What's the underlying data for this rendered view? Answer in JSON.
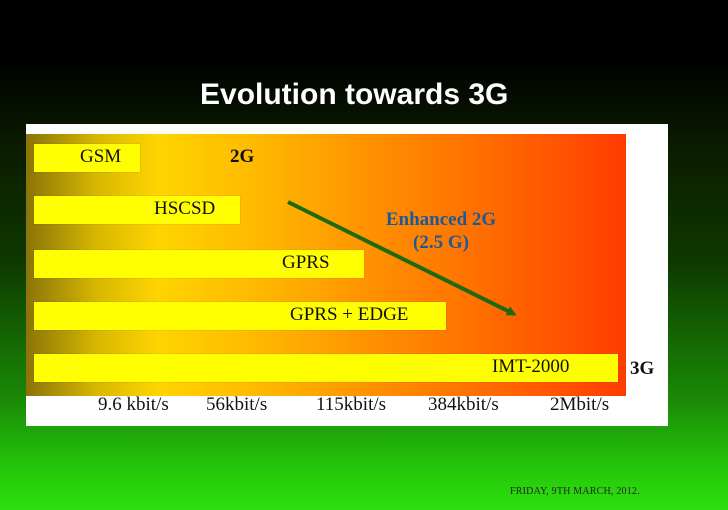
{
  "title": "Evolution towards 3G",
  "bars": [
    {
      "label": "GSM"
    },
    {
      "label": "HSCSD"
    },
    {
      "label": "GPRS"
    },
    {
      "label": "GPRS + EDGE"
    },
    {
      "label": "IMT-2000"
    }
  ],
  "generation_labels": {
    "g2": "2G",
    "enhanced_line1": "Enhanced 2G",
    "enhanced_line2": "(2.5 G)",
    "g3": "3G"
  },
  "data_rates": [
    "9.6 kbit/s",
    "56kbit/s",
    "115kbit/s",
    "384kbit/s",
    "2Mbit/s"
  ],
  "footer": "FRIDAY, 9TH MARCH, 2012.",
  "colors": {
    "bar": "#ffff00",
    "arrow": "#1f6a10",
    "enhanced_text": "#1a5a9a"
  }
}
